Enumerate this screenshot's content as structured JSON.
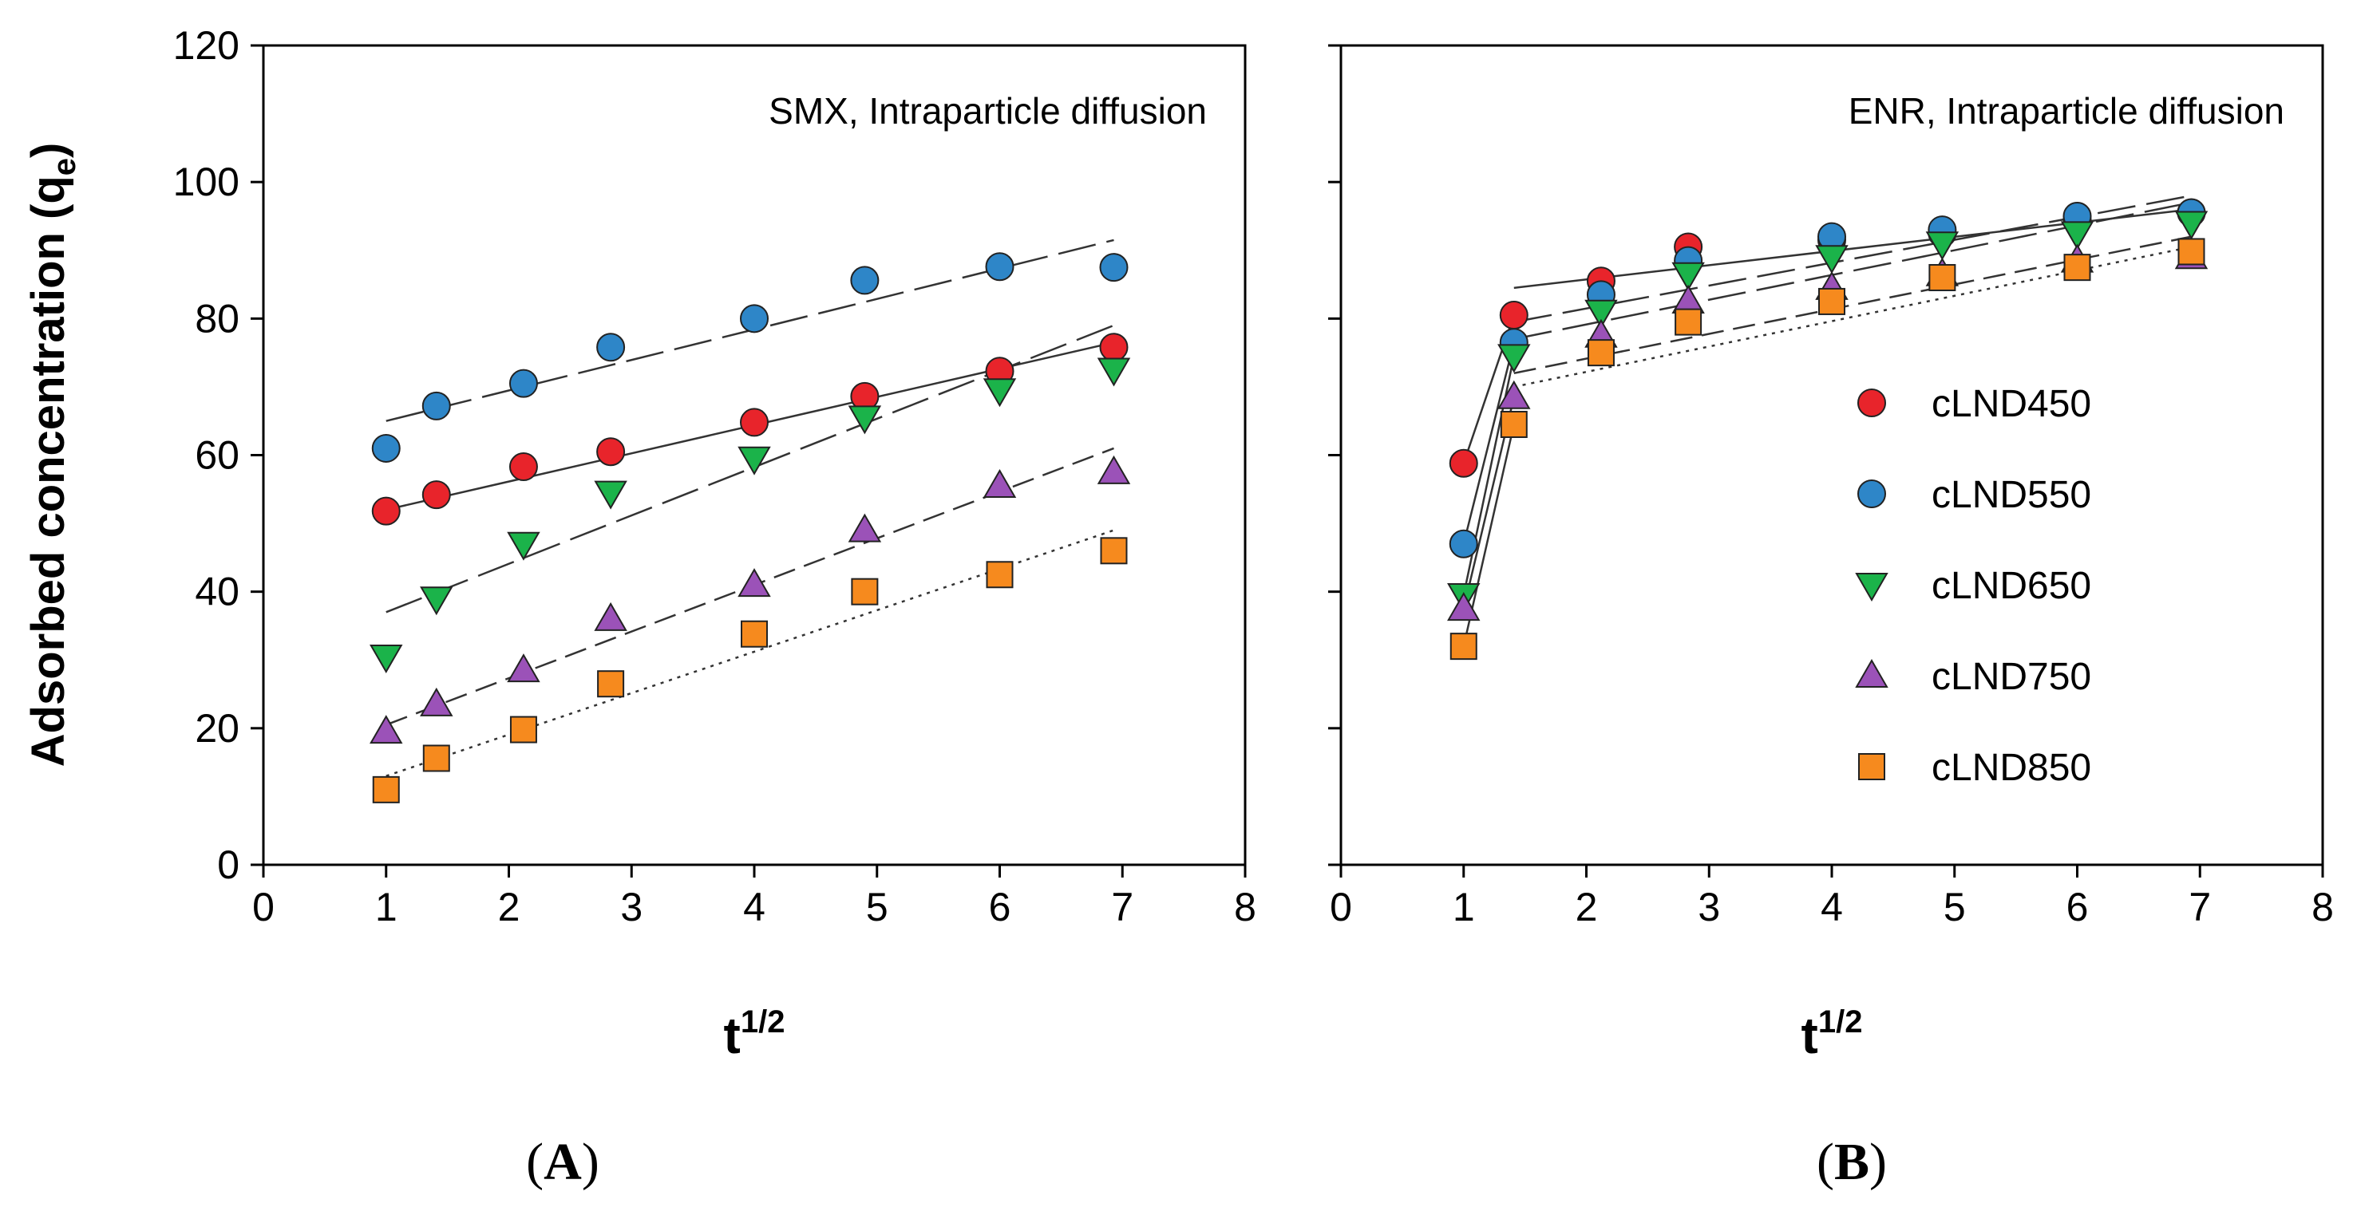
{
  "figure": {
    "caption_a_open": "(",
    "caption_a_letter": "A",
    "caption_a_close": ")",
    "caption_b_open": "(",
    "caption_b_letter": "B",
    "caption_b_close": ")"
  },
  "colors": {
    "cLND450": "#e8242b",
    "cLND550": "#2e86c8",
    "cLND650": "#1bb34a",
    "cLND750": "#9b52b8",
    "cLND850": "#f68a1e"
  },
  "chart_data": [
    {
      "type": "scatter",
      "title": "SMX, Intraparticle diffusion",
      "xlabel_main": "t",
      "xlabel_sup": "1/2",
      "ylabel_main": "Adsorbed concentration (q",
      "ylabel_sub": "e",
      "ylabel_close": ")",
      "xlim": [
        0,
        8
      ],
      "ylim": [
        0,
        120
      ],
      "xticks": [
        0,
        1,
        2,
        3,
        4,
        5,
        6,
        7,
        8
      ],
      "yticks": [
        0,
        20,
        40,
        60,
        80,
        100,
        120
      ],
      "x": [
        1.0,
        1.41,
        2.12,
        2.83,
        4.0,
        4.9,
        6.0,
        6.93
      ],
      "series": [
        {
          "name": "cLND450",
          "marker": "circle",
          "values": [
            51.8,
            54.2,
            58.3,
            60.5,
            64.8,
            68.6,
            72.3,
            75.8
          ],
          "fits": [
            {
              "x": [
                1.0,
                6.93
              ],
              "y": [
                52.0,
                76.5
              ],
              "dash": "solid"
            }
          ]
        },
        {
          "name": "cLND550",
          "marker": "circle",
          "values": [
            61.0,
            67.2,
            70.5,
            75.8,
            80.0,
            85.6,
            87.6,
            87.5
          ],
          "fits": [
            {
              "x": [
                1.0,
                6.93
              ],
              "y": [
                65.0,
                91.5
              ],
              "dash": "long"
            }
          ]
        },
        {
          "name": "cLND650",
          "marker": "triangle-down",
          "values": [
            30.5,
            39.0,
            47.0,
            54.5,
            59.5,
            65.5,
            69.5,
            72.5
          ],
          "fits": [
            {
              "x": [
                1.0,
                6.93
              ],
              "y": [
                37.0,
                79.0
              ],
              "dash": "long"
            }
          ]
        },
        {
          "name": "cLND750",
          "marker": "triangle-up",
          "values": [
            19.5,
            23.5,
            28.5,
            36.0,
            41.0,
            49.0,
            55.5,
            57.5
          ],
          "fits": [
            {
              "x": [
                1.0,
                6.93
              ],
              "y": [
                20.5,
                61.0
              ],
              "dash": "medium"
            }
          ]
        },
        {
          "name": "cLND850",
          "marker": "square",
          "values": [
            11.0,
            15.6,
            19.8,
            26.5,
            33.8,
            40.0,
            42.5,
            46.0
          ],
          "fits": [
            {
              "x": [
                1.0,
                6.93
              ],
              "y": [
                13.0,
                49.0
              ],
              "dash": "dot"
            }
          ]
        }
      ]
    },
    {
      "type": "scatter",
      "title": "ENR, Intraparticle diffusion",
      "xlabel_main": "t",
      "xlabel_sup": "1/2",
      "xlim": [
        0,
        8
      ],
      "ylim": [
        0,
        120
      ],
      "xticks": [
        0,
        1,
        2,
        3,
        4,
        5,
        6,
        7,
        8
      ],
      "yticks": [
        0,
        20,
        40,
        60,
        80,
        100,
        120
      ],
      "legend_position": "right",
      "x": [
        1.0,
        1.41,
        2.12,
        2.83,
        4.0,
        4.9,
        6.0,
        6.93
      ],
      "series": [
        {
          "name": "cLND450",
          "marker": "circle",
          "values": [
            58.8,
            80.5,
            85.5,
            90.5,
            91.5,
            92.5,
            94.5,
            95.5
          ],
          "fits": [
            {
              "x": [
                1.0,
                1.41
              ],
              "y": [
                58.8,
                80.5
              ],
              "dash": "solid"
            },
            {
              "x": [
                1.41,
                6.93
              ],
              "y": [
                84.5,
                96.0
              ],
              "dash": "solid"
            }
          ]
        },
        {
          "name": "cLND550",
          "marker": "circle",
          "values": [
            47.0,
            76.5,
            83.5,
            88.5,
            92.0,
            93.0,
            95.0,
            95.5
          ],
          "fits": [
            {
              "x": [
                1.0,
                1.41
              ],
              "y": [
                47.0,
                76.5
              ],
              "dash": "solid"
            },
            {
              "x": [
                1.41,
                6.93
              ],
              "y": [
                79.5,
                98.0
              ],
              "dash": "long"
            }
          ]
        },
        {
          "name": "cLND650",
          "marker": "triangle-down",
          "values": [
            39.5,
            74.5,
            81.0,
            86.5,
            89.0,
            91.0,
            92.5,
            94.0
          ],
          "fits": [
            {
              "x": [
                1.0,
                1.41
              ],
              "y": [
                39.5,
                74.5
              ],
              "dash": "solid"
            },
            {
              "x": [
                1.41,
                6.93
              ],
              "y": [
                77.0,
                97.0
              ],
              "dash": "long"
            }
          ]
        },
        {
          "name": "cLND750",
          "marker": "triangle-up",
          "values": [
            37.5,
            68.5,
            77.5,
            82.5,
            84.5,
            86.5,
            88.5,
            89.0
          ],
          "fits": [
            {
              "x": [
                1.0,
                1.41
              ],
              "y": [
                37.5,
                68.5
              ],
              "dash": "solid"
            },
            {
              "x": [
                1.41,
                6.93
              ],
              "y": [
                72.0,
                92.0
              ],
              "dash": "medium"
            }
          ]
        },
        {
          "name": "cLND850",
          "marker": "square",
          "values": [
            32.0,
            64.5,
            75.0,
            79.5,
            82.5,
            86.0,
            87.5,
            89.8
          ],
          "fits": [
            {
              "x": [
                1.0,
                1.41
              ],
              "y": [
                32.0,
                64.5
              ],
              "dash": "solid"
            },
            {
              "x": [
                1.41,
                6.93
              ],
              "y": [
                70.0,
                90.5
              ],
              "dash": "dot"
            }
          ]
        }
      ]
    }
  ]
}
